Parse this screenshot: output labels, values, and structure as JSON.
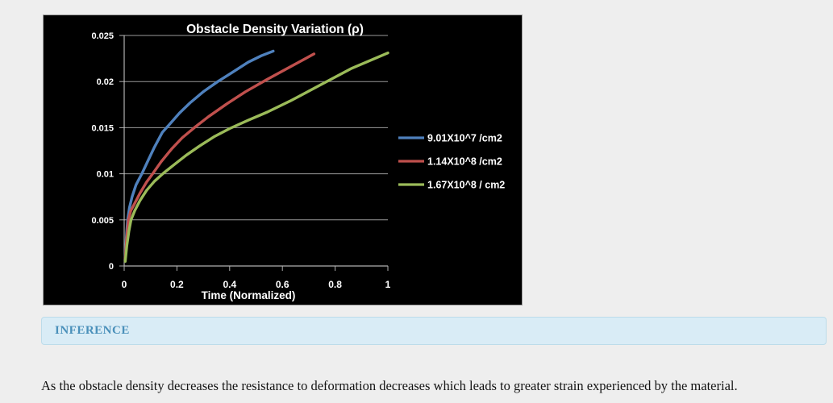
{
  "page": {
    "background": "#eeeeee",
    "inference": {
      "heading": "INFERENCE",
      "body": "As the obstacle density decreases the resistance to deformation decreases which leads to greater strain experienced by the material.",
      "heading_color": "#4a90ba",
      "box_bg": "#d9ecf6",
      "box_border": "#bcdcea"
    }
  },
  "chart_data": {
    "type": "line",
    "title": "Obstacle Density Variation (ρ)",
    "xlabel": "Time (Normalized)",
    "ylabel": "",
    "xlim": [
      0,
      1
    ],
    "ylim": [
      0,
      0.025
    ],
    "x_ticks": [
      "0",
      "0.2",
      "0.4",
      "0.6",
      "0.8",
      "1"
    ],
    "x_tick_values": [
      0,
      0.2,
      0.4,
      0.6,
      0.8,
      1
    ],
    "y_ticks": [
      "0",
      "0.005",
      "0.01",
      "0.015",
      "0.02",
      "0.025"
    ],
    "y_tick_values": [
      0,
      0.005,
      0.01,
      0.015,
      0.02,
      0.025
    ],
    "grid": true,
    "background": "#000000",
    "gridline_color": "#9a9a9a",
    "axis_color": "#b0b0b0",
    "text_color": "#ffffff",
    "legend_position": "right",
    "series": [
      {
        "name": "9.01X10^7 /cm2",
        "color": "#4f81bd",
        "points": [
          [
            0.004,
            0.001
          ],
          [
            0.008,
            0.003
          ],
          [
            0.013,
            0.005
          ],
          [
            0.02,
            0.0063
          ],
          [
            0.03,
            0.0075
          ],
          [
            0.045,
            0.0088
          ],
          [
            0.067,
            0.01
          ],
          [
            0.09,
            0.0114
          ],
          [
            0.113,
            0.0128
          ],
          [
            0.145,
            0.0145
          ],
          [
            0.17,
            0.0153
          ],
          [
            0.21,
            0.0166
          ],
          [
            0.25,
            0.0177
          ],
          [
            0.3,
            0.0189
          ],
          [
            0.355,
            0.02
          ],
          [
            0.41,
            0.021
          ],
          [
            0.47,
            0.0221
          ],
          [
            0.52,
            0.0228
          ],
          [
            0.565,
            0.0233
          ]
        ]
      },
      {
        "name": "1.14X10^8 /cm2",
        "color": "#c0504d",
        "points": [
          [
            0.004,
            0.0008
          ],
          [
            0.009,
            0.0028
          ],
          [
            0.016,
            0.005
          ],
          [
            0.025,
            0.006
          ],
          [
            0.04,
            0.0068
          ],
          [
            0.06,
            0.0079
          ],
          [
            0.085,
            0.0091
          ],
          [
            0.108,
            0.01
          ],
          [
            0.14,
            0.0113
          ],
          [
            0.18,
            0.0127
          ],
          [
            0.22,
            0.0139
          ],
          [
            0.266,
            0.015
          ],
          [
            0.32,
            0.0162
          ],
          [
            0.39,
            0.0176
          ],
          [
            0.46,
            0.0189
          ],
          [
            0.54,
            0.0202
          ],
          [
            0.63,
            0.0216
          ],
          [
            0.72,
            0.023
          ]
        ]
      },
      {
        "name": "1.67X10^8 / cm2",
        "color": "#9bbb59",
        "points": [
          [
            0.004,
            0.0005
          ],
          [
            0.01,
            0.0022
          ],
          [
            0.018,
            0.0038
          ],
          [
            0.026,
            0.005
          ],
          [
            0.04,
            0.006
          ],
          [
            0.06,
            0.0071
          ],
          [
            0.085,
            0.0082
          ],
          [
            0.115,
            0.0092
          ],
          [
            0.15,
            0.0101
          ],
          [
            0.19,
            0.011
          ],
          [
            0.235,
            0.012
          ],
          [
            0.285,
            0.013
          ],
          [
            0.34,
            0.014
          ],
          [
            0.4,
            0.0149
          ],
          [
            0.47,
            0.0158
          ],
          [
            0.543,
            0.0167
          ],
          [
            0.63,
            0.0179
          ],
          [
            0.742,
            0.0196
          ],
          [
            0.86,
            0.0214
          ],
          [
            1.0,
            0.0231
          ]
        ]
      }
    ]
  }
}
